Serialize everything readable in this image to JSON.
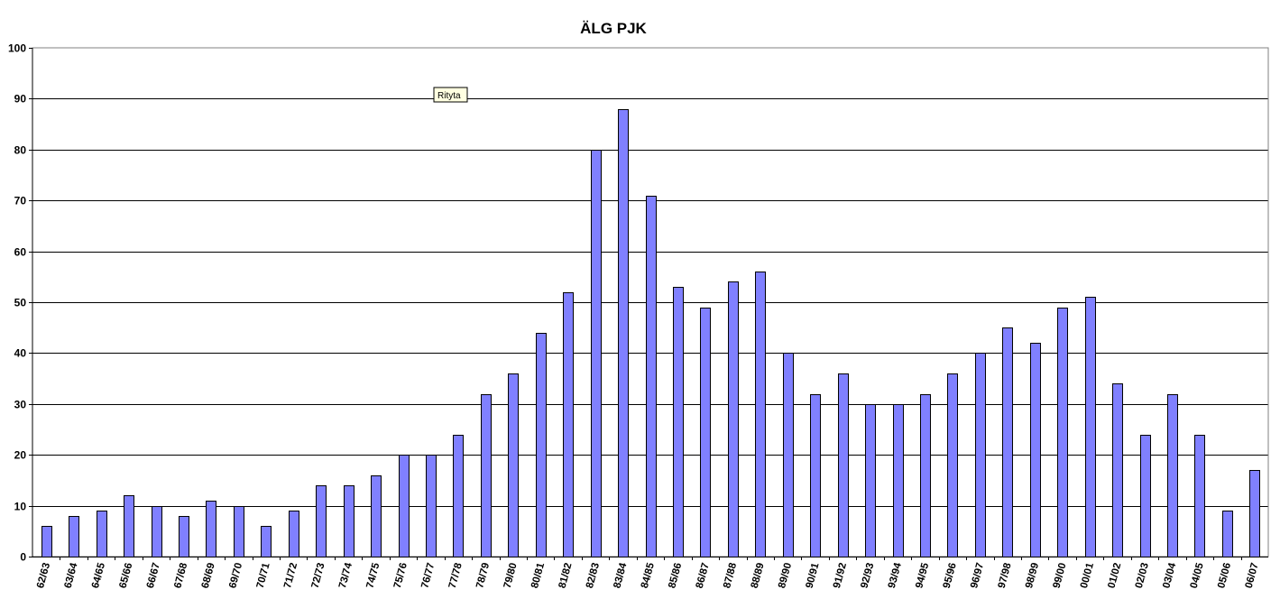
{
  "tooltip": "Rityta",
  "chart_data": {
    "type": "bar",
    "title": "ÄLG  PJK",
    "xlabel": "",
    "ylabel": "",
    "ylim": [
      0,
      100
    ],
    "yticks": [
      0,
      10,
      20,
      30,
      40,
      50,
      60,
      70,
      80,
      90,
      100
    ],
    "grid": true,
    "legend": "none",
    "bar_color": "#8080ff",
    "categories": [
      "62/63",
      "63/64",
      "64/65",
      "65/66",
      "66/67",
      "67/68",
      "68/69",
      "69/70",
      "70/71",
      "71/72",
      "72/73",
      "73/74",
      "74/75",
      "75/76",
      "76/77",
      "77/78",
      "78/79",
      "79/80",
      "80/81",
      "81/82",
      "82/83",
      "83/84",
      "84/85",
      "85/86",
      "86/87",
      "87/88",
      "88/89",
      "89/90",
      "90/91",
      "91/92",
      "92/93",
      "93/94",
      "94/95",
      "95/96",
      "96/97",
      "97/98",
      "98/99",
      "99/00",
      "00/01",
      "01/02",
      "02/03",
      "03/04",
      "04/05",
      "05/06",
      "06/07"
    ],
    "values": [
      6,
      8,
      9,
      12,
      10,
      8,
      11,
      10,
      6,
      9,
      14,
      14,
      16,
      20,
      20,
      24,
      32,
      36,
      44,
      52,
      80,
      88,
      71,
      53,
      49,
      54,
      56,
      40,
      32,
      36,
      30,
      30,
      32,
      36,
      40,
      45,
      42,
      49,
      51,
      34,
      24,
      32,
      24,
      9,
      17
    ]
  }
}
